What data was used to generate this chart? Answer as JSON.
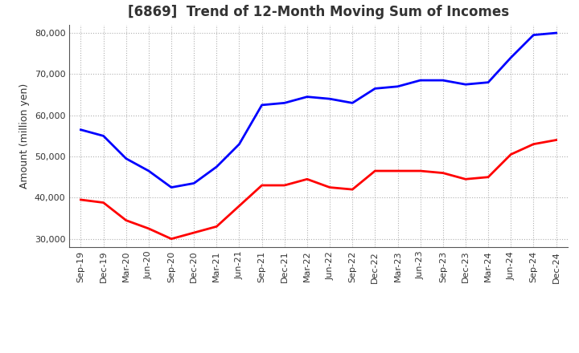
{
  "title": "[6869]  Trend of 12-Month Moving Sum of Incomes",
  "ylabel": "Amount (million yen)",
  "background_color": "#ffffff",
  "grid_color": "#b0b0b0",
  "x_labels": [
    "Sep-19",
    "Dec-19",
    "Mar-20",
    "Jun-20",
    "Sep-20",
    "Dec-20",
    "Mar-21",
    "Jun-21",
    "Sep-21",
    "Dec-21",
    "Mar-22",
    "Jun-22",
    "Sep-22",
    "Dec-22",
    "Mar-23",
    "Jun-23",
    "Sep-23",
    "Dec-23",
    "Mar-24",
    "Jun-24",
    "Sep-24",
    "Dec-24"
  ],
  "ordinary_income": [
    56500,
    55000,
    49500,
    46500,
    42500,
    43500,
    47500,
    53000,
    62500,
    63000,
    64500,
    64000,
    63000,
    66500,
    67000,
    68500,
    68500,
    67500,
    68000,
    74000,
    79500,
    80000
  ],
  "net_income": [
    39500,
    38800,
    34500,
    32500,
    30000,
    31500,
    33000,
    38000,
    43000,
    43000,
    44500,
    42500,
    42000,
    46500,
    46500,
    46500,
    46000,
    44500,
    45000,
    50500,
    53000,
    54000
  ],
  "ordinary_color": "#0000ff",
  "net_color": "#ff0000",
  "line_width": 2.0,
  "ylim": [
    28000,
    82000
  ],
  "yticks": [
    30000,
    40000,
    50000,
    60000,
    70000,
    80000
  ],
  "title_fontsize": 12,
  "title_color": "#333333",
  "axis_fontsize": 9,
  "tick_fontsize": 8,
  "legend_fontsize": 9
}
